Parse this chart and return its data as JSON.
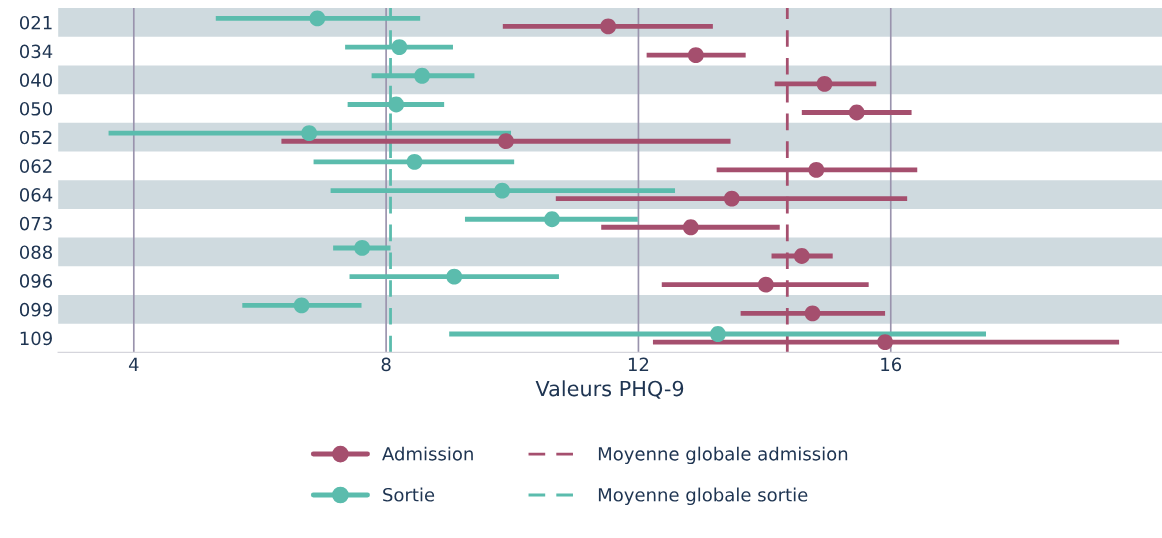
{
  "chart_data": {
    "type": "scatter",
    "orientation": "horizontal",
    "xlabel": "Valeurs PHQ-9",
    "categories": [
      "021",
      "034",
      "040",
      "050",
      "052",
      "062",
      "064",
      "073",
      "088",
      "096",
      "099",
      "109"
    ],
    "series": [
      {
        "name": "Admission",
        "color": "#a54f6e",
        "values": [
          11.52,
          12.91,
          14.95,
          15.46,
          9.9,
          14.82,
          13.48,
          12.83,
          14.59,
          14.02,
          14.76,
          15.91
        ],
        "errors": [
          [
            9.85,
            13.18
          ],
          [
            12.13,
            13.7
          ],
          [
            14.16,
            15.77
          ],
          [
            14.59,
            16.33
          ],
          [
            6.34,
            13.46
          ],
          [
            13.24,
            16.42
          ],
          [
            10.69,
            16.26
          ],
          [
            11.41,
            14.24
          ],
          [
            14.11,
            15.08
          ],
          [
            12.37,
            15.65
          ],
          [
            13.62,
            15.91
          ],
          [
            12.23,
            19.62
          ]
        ]
      },
      {
        "name": "Sortie",
        "color": "#5bbcad",
        "values": [
          6.91,
          8.21,
          8.57,
          8.16,
          6.78,
          8.45,
          9.84,
          10.63,
          7.62,
          9.08,
          6.66,
          13.26
        ],
        "errors": [
          [
            5.3,
            8.54
          ],
          [
            7.35,
            9.06
          ],
          [
            7.77,
            9.4
          ],
          [
            7.39,
            8.92
          ],
          [
            3.6,
            9.98
          ],
          [
            6.85,
            10.03
          ],
          [
            7.12,
            12.58
          ],
          [
            9.25,
            11.99
          ],
          [
            7.16,
            8.07
          ],
          [
            7.42,
            10.74
          ],
          [
            5.72,
            7.61
          ],
          [
            9.0,
            17.51
          ]
        ]
      }
    ],
    "ref_lines": [
      {
        "axis": "x",
        "value": 14.36,
        "label": "Moyenne globale admission",
        "color": "#a54f6e",
        "line_style": "dashed"
      },
      {
        "axis": "x",
        "value": 8.07,
        "label": "Moyenne globale sortie",
        "color": "#5bbcad",
        "line_style": "dashed"
      }
    ],
    "xlim": [
      2.8,
      20.3
    ],
    "xticks": [
      4,
      8,
      12,
      16
    ],
    "grid": "x",
    "marker": "circle",
    "legend": "bottom"
  }
}
